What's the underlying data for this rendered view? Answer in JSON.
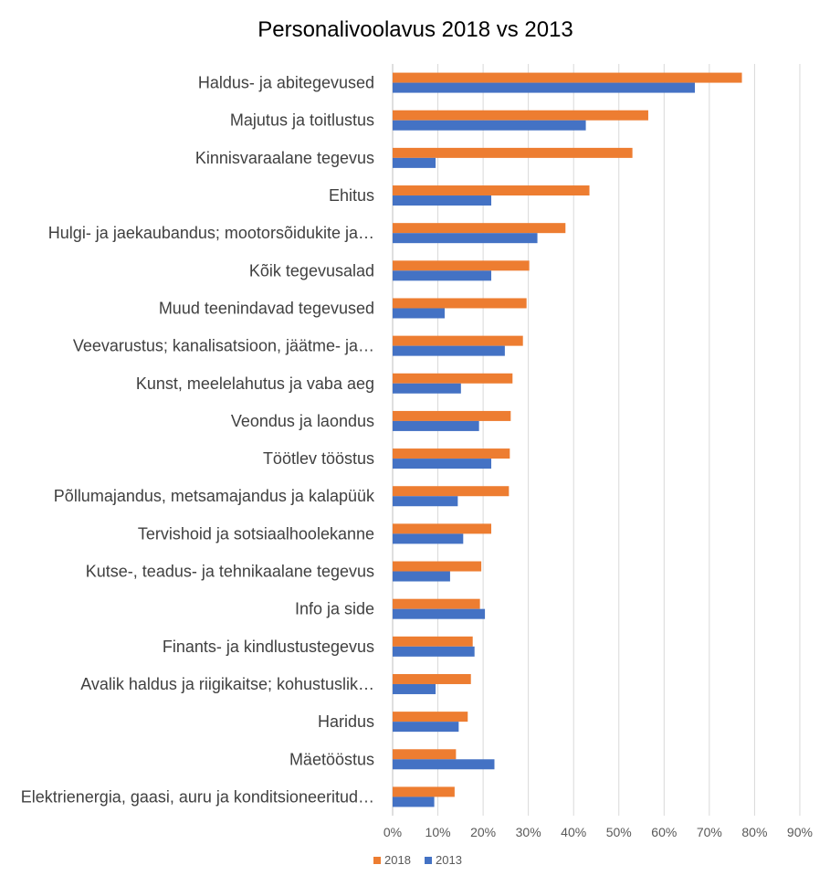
{
  "chart_data": {
    "type": "bar",
    "orientation": "horizontal",
    "title": "Personalivoolavus 2018 vs 2013",
    "xlabel": "",
    "ylabel": "",
    "xlim": [
      0,
      90
    ],
    "x_ticks": [
      0,
      10,
      20,
      30,
      40,
      50,
      60,
      70,
      80,
      90
    ],
    "x_tick_labels": [
      "0%",
      "10%",
      "20%",
      "30%",
      "40%",
      "50%",
      "60%",
      "70%",
      "80%",
      "90%"
    ],
    "grid": "vertical",
    "legend_position": "bottom",
    "categories": [
      "Haldus- ja abitegevused",
      "Majutus ja toitlustus",
      "Kinnisvaraalane tegevus",
      "Ehitus",
      "Hulgi- ja jaekaubandus; mootorsõidukite ja…",
      "Kõik tegevusalad",
      "Muud teenindavad tegevused",
      "Veevarustus; kanalisatsioon, jäätme- ja…",
      "Kunst, meelelahutus ja vaba aeg",
      "Veondus ja laondus",
      "Töötlev tööstus",
      "Põllumajandus, metsamajandus ja kalapüük",
      "Tervishoid ja sotsiaalhoolekanne",
      "Kutse-, teadus- ja tehnikaalane tegevus",
      "Info ja side",
      "Finants- ja kindlustustegevus",
      "Avalik haldus ja riigikaitse; kohustuslik…",
      "Haridus",
      "Mäetööstus",
      "Elektrienergia, gaasi, auru ja konditsioneeritud…"
    ],
    "series": [
      {
        "name": "2018",
        "color": "#ED7D31",
        "values": [
          77.2,
          56.5,
          53.0,
          43.5,
          38.2,
          30.2,
          29.6,
          28.8,
          26.5,
          26.1,
          25.9,
          25.7,
          21.8,
          19.6,
          19.3,
          17.7,
          17.3,
          16.6,
          14.0,
          13.7
        ]
      },
      {
        "name": "2013",
        "color": "#4472C4",
        "values": [
          66.8,
          42.7,
          9.5,
          21.8,
          32.0,
          21.8,
          11.5,
          24.8,
          15.1,
          19.1,
          21.8,
          14.4,
          15.6,
          12.7,
          20.4,
          18.1,
          9.5,
          14.6,
          22.5,
          9.2
        ]
      }
    ]
  }
}
